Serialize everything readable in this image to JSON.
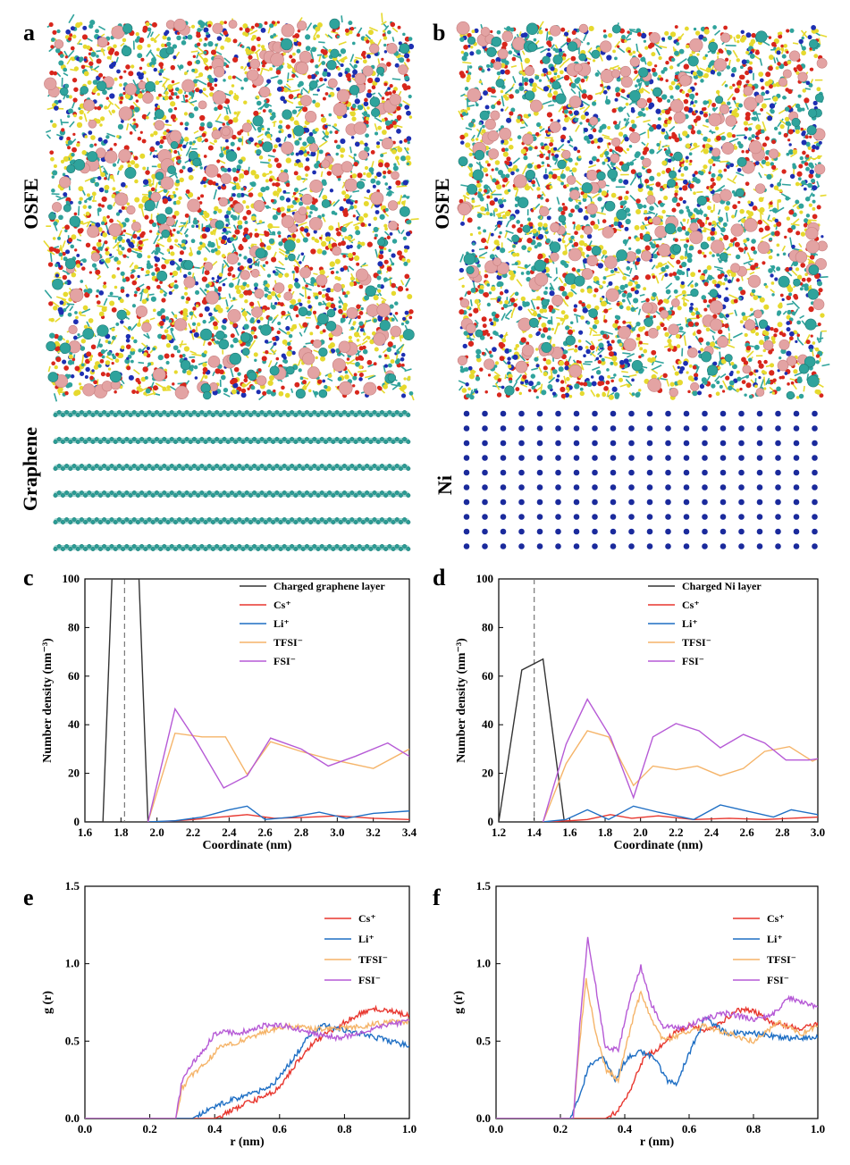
{
  "figure": {
    "panels": {
      "a": {
        "letter": "a",
        "top_label": "OSFE",
        "bottom_label": "Graphene"
      },
      "b": {
        "letter": "b",
        "top_label": "OSFE",
        "bottom_label": "Ni"
      },
      "c": {
        "letter": "c"
      },
      "d": {
        "letter": "d"
      },
      "e": {
        "letter": "e"
      },
      "f": {
        "letter": "f"
      }
    },
    "colors": {
      "cs": "#e8372f",
      "li": "#1f6fc4",
      "tfsi": "#f5b469",
      "fsi": "#b65ad6",
      "layer": "#333333",
      "md_teal": "#2fa39c",
      "md_pink": "#e3a3a3",
      "md_yellow": "#e6d92e",
      "md_red": "#d8261c",
      "md_blue": "#1d2fb2",
      "ni_atom": "#1a2a9c",
      "graphene": "#2a9d96"
    }
  },
  "chart_data": [
    {
      "id": "c",
      "type": "line",
      "xlabel": "Coordinate (nm)",
      "ylabel": "Number density (nm⁻³)",
      "xlim": [
        1.6,
        3.4
      ],
      "ylim": [
        0,
        100
      ],
      "xticks": [
        "1.6",
        "1.8",
        "2.0",
        "2.2",
        "2.4",
        "2.6",
        "2.8",
        "3.0",
        "3.2",
        "3.4"
      ],
      "yticks": [
        "0",
        "20",
        "40",
        "60",
        "80",
        "100"
      ],
      "vline": 1.82,
      "series": [
        {
          "name": "Charged graphene layer",
          "legend": "Charged graphene layer",
          "color_key": "layer",
          "x": [
            1.6,
            1.7,
            1.75,
            1.82,
            1.9,
            1.95,
            3.4
          ],
          "y": [
            0,
            0,
            100,
            100,
            100,
            0,
            0
          ]
        },
        {
          "name": "Cs+",
          "legend": "Cs⁺",
          "color_key": "cs",
          "x": [
            1.95,
            2.05,
            2.2,
            2.35,
            2.5,
            2.65,
            2.8,
            3.0,
            3.2,
            3.4
          ],
          "y": [
            0,
            0.2,
            1,
            2,
            3,
            1.5,
            1.8,
            2.5,
            1.5,
            1
          ]
        },
        {
          "name": "Li+",
          "legend": "Li⁺",
          "color_key": "li",
          "x": [
            1.95,
            2.1,
            2.25,
            2.4,
            2.5,
            2.6,
            2.75,
            2.9,
            3.05,
            3.2,
            3.4
          ],
          "y": [
            0,
            0.5,
            2,
            5,
            6.5,
            1,
            2,
            4,
            1.5,
            3.5,
            4.5
          ]
        },
        {
          "name": "TFSI-",
          "legend": "TFSI⁻",
          "color_key": "tfsi",
          "x": [
            1.95,
            2.1,
            2.25,
            2.38,
            2.5,
            2.63,
            2.8,
            2.95,
            3.2,
            3.4
          ],
          "y": [
            0,
            36.5,
            35,
            35,
            19.5,
            33,
            29,
            26,
            22,
            30
          ]
        },
        {
          "name": "FSI-",
          "legend": "FSI⁻",
          "color_key": "fsi",
          "x": [
            1.95,
            2.1,
            2.22,
            2.37,
            2.5,
            2.63,
            2.8,
            2.95,
            3.1,
            3.28,
            3.4
          ],
          "y": [
            0,
            46.5,
            33,
            14,
            19,
            34.5,
            30,
            23,
            27,
            32.5,
            27
          ]
        }
      ]
    },
    {
      "id": "d",
      "type": "line",
      "xlabel": "Coordinate (nm)",
      "ylabel": "Number density (nm⁻³)",
      "xlim": [
        1.2,
        3.0
      ],
      "ylim": [
        0,
        100
      ],
      "xticks": [
        "1.2",
        "1.4",
        "1.6",
        "1.8",
        "2.0",
        "2.2",
        "2.4",
        "2.6",
        "2.8",
        "3.0"
      ],
      "yticks": [
        "0",
        "20",
        "40",
        "60",
        "80",
        "100"
      ],
      "vline": 1.4,
      "series": [
        {
          "name": "Charged Ni layer",
          "legend": "Charged Ni layer",
          "color_key": "layer",
          "x": [
            1.2,
            1.33,
            1.45,
            1.57,
            3.0
          ],
          "y": [
            0,
            62.5,
            67,
            0,
            0
          ]
        },
        {
          "name": "Cs+",
          "legend": "Cs⁺",
          "color_key": "cs",
          "x": [
            1.45,
            1.6,
            1.7,
            1.83,
            1.95,
            2.1,
            2.3,
            2.5,
            2.7,
            2.85,
            3.0
          ],
          "y": [
            0,
            0.5,
            1,
            3,
            1.5,
            2.5,
            1,
            1.5,
            1,
            1.5,
            2
          ]
        },
        {
          "name": "Li+",
          "legend": "Li⁺",
          "color_key": "li",
          "x": [
            1.45,
            1.58,
            1.7,
            1.82,
            1.96,
            2.1,
            2.3,
            2.45,
            2.6,
            2.75,
            2.85,
            3.0
          ],
          "y": [
            0,
            1,
            5,
            1,
            6.5,
            4,
            1,
            7,
            4.5,
            2,
            5,
            3
          ]
        },
        {
          "name": "TFSI-",
          "legend": "TFSI⁻",
          "color_key": "tfsi",
          "x": [
            1.45,
            1.58,
            1.7,
            1.82,
            1.96,
            2.07,
            2.2,
            2.32,
            2.45,
            2.58,
            2.7,
            2.84,
            2.97,
            3.0
          ],
          "y": [
            0,
            24,
            37.5,
            35,
            15,
            23,
            21.5,
            23,
            19,
            22,
            29,
            31,
            25,
            26
          ]
        },
        {
          "name": "FSI-",
          "legend": "FSI⁻",
          "color_key": "fsi",
          "x": [
            1.45,
            1.58,
            1.7,
            1.83,
            1.96,
            2.07,
            2.2,
            2.33,
            2.45,
            2.58,
            2.7,
            2.82,
            2.95,
            3.0
          ],
          "y": [
            0,
            32,
            50.5,
            35,
            10,
            35,
            40.5,
            37.5,
            30.5,
            36,
            32.5,
            25.5,
            25.5,
            26
          ]
        }
      ]
    },
    {
      "id": "e",
      "type": "line",
      "xlabel": "r (nm)",
      "ylabel": "g (r)",
      "xlim": [
        0.0,
        1.0
      ],
      "ylim": [
        0,
        1.5
      ],
      "xticks": [
        "0.0",
        "0.2",
        "0.4",
        "0.6",
        "0.8",
        "1.0"
      ],
      "yticks": [
        "0.0",
        "0.5",
        "1.0",
        "1.5"
      ],
      "noise": true,
      "series": [
        {
          "name": "Cs+",
          "legend": "Cs⁺",
          "color_key": "cs",
          "x": [
            0,
            0.4,
            0.45,
            0.5,
            0.55,
            0.6,
            0.65,
            0.7,
            0.75,
            0.8,
            0.85,
            0.9,
            0.95,
            1.0
          ],
          "y": [
            0,
            0,
            0.05,
            0.1,
            0.14,
            0.2,
            0.35,
            0.48,
            0.56,
            0.62,
            0.68,
            0.71,
            0.69,
            0.67
          ]
        },
        {
          "name": "Li+",
          "legend": "Li⁺",
          "color_key": "li",
          "x": [
            0,
            0.33,
            0.38,
            0.45,
            0.52,
            0.58,
            0.63,
            0.68,
            0.73,
            0.78,
            0.85,
            0.92,
            1.0
          ],
          "y": [
            0,
            0,
            0.06,
            0.12,
            0.16,
            0.22,
            0.35,
            0.5,
            0.6,
            0.58,
            0.55,
            0.51,
            0.47
          ]
        },
        {
          "name": "TFSI-",
          "legend": "TFSI⁻",
          "color_key": "tfsi",
          "x": [
            0,
            0.28,
            0.3,
            0.33,
            0.38,
            0.42,
            0.48,
            0.55,
            0.62,
            0.7,
            0.78,
            0.86,
            0.93,
            1.0
          ],
          "y": [
            0,
            0,
            0.2,
            0.28,
            0.38,
            0.47,
            0.5,
            0.56,
            0.6,
            0.58,
            0.58,
            0.6,
            0.62,
            0.63
          ]
        },
        {
          "name": "FSI-",
          "legend": "FSI⁻",
          "color_key": "fsi",
          "x": [
            0,
            0.28,
            0.3,
            0.33,
            0.36,
            0.4,
            0.43,
            0.47,
            0.55,
            0.62,
            0.7,
            0.78,
            0.86,
            0.93,
            1.0
          ],
          "y": [
            0,
            0,
            0.25,
            0.36,
            0.42,
            0.55,
            0.56,
            0.55,
            0.6,
            0.6,
            0.55,
            0.52,
            0.56,
            0.6,
            0.63
          ]
        }
      ]
    },
    {
      "id": "f",
      "type": "line",
      "xlabel": "r (nm)",
      "ylabel": "g (r)",
      "xlim": [
        0.0,
        1.0
      ],
      "ylim": [
        0,
        1.5
      ],
      "xticks": [
        "0.0",
        "0.2",
        "0.4",
        "0.6",
        "0.8",
        "1.0"
      ],
      "yticks": [
        "0.0",
        "0.5",
        "1.0",
        "1.5"
      ],
      "noise": true,
      "series": [
        {
          "name": "Cs+",
          "legend": "Cs⁺",
          "color_key": "cs",
          "x": [
            0,
            0.34,
            0.38,
            0.42,
            0.46,
            0.5,
            0.55,
            0.6,
            0.65,
            0.7,
            0.75,
            0.8,
            0.85,
            0.9,
            0.95,
            1.0
          ],
          "y": [
            0,
            0,
            0.05,
            0.2,
            0.4,
            0.44,
            0.55,
            0.6,
            0.57,
            0.62,
            0.7,
            0.7,
            0.62,
            0.6,
            0.58,
            0.62
          ]
        },
        {
          "name": "Li+",
          "legend": "Li⁺",
          "color_key": "li",
          "x": [
            0,
            0.23,
            0.26,
            0.29,
            0.33,
            0.37,
            0.41,
            0.45,
            0.49,
            0.53,
            0.56,
            0.6,
            0.65,
            0.68,
            0.72,
            0.8,
            0.9,
            1.0
          ],
          "y": [
            0,
            0,
            0.15,
            0.35,
            0.4,
            0.25,
            0.4,
            0.43,
            0.4,
            0.25,
            0.22,
            0.42,
            0.65,
            0.6,
            0.55,
            0.55,
            0.52,
            0.52
          ]
        },
        {
          "name": "TFSI-",
          "legend": "TFSI⁻",
          "color_key": "tfsi",
          "x": [
            0,
            0.24,
            0.26,
            0.28,
            0.31,
            0.34,
            0.38,
            0.42,
            0.45,
            0.48,
            0.52,
            0.58,
            0.65,
            0.72,
            0.8,
            0.88,
            0.95,
            1.0
          ],
          "y": [
            0,
            0,
            0.5,
            0.9,
            0.55,
            0.32,
            0.25,
            0.6,
            0.82,
            0.65,
            0.5,
            0.55,
            0.6,
            0.55,
            0.5,
            0.62,
            0.55,
            0.6
          ]
        },
        {
          "name": "FSI-",
          "legend": "FSI⁻",
          "color_key": "fsi",
          "x": [
            0,
            0.24,
            0.26,
            0.285,
            0.31,
            0.34,
            0.38,
            0.42,
            0.45,
            0.48,
            0.52,
            0.58,
            0.65,
            0.72,
            0.8,
            0.86,
            0.91,
            0.96,
            1.0
          ],
          "y": [
            0,
            0,
            0.6,
            1.17,
            0.85,
            0.45,
            0.45,
            0.8,
            0.98,
            0.75,
            0.6,
            0.58,
            0.65,
            0.68,
            0.64,
            0.67,
            0.78,
            0.75,
            0.72
          ]
        }
      ]
    }
  ]
}
